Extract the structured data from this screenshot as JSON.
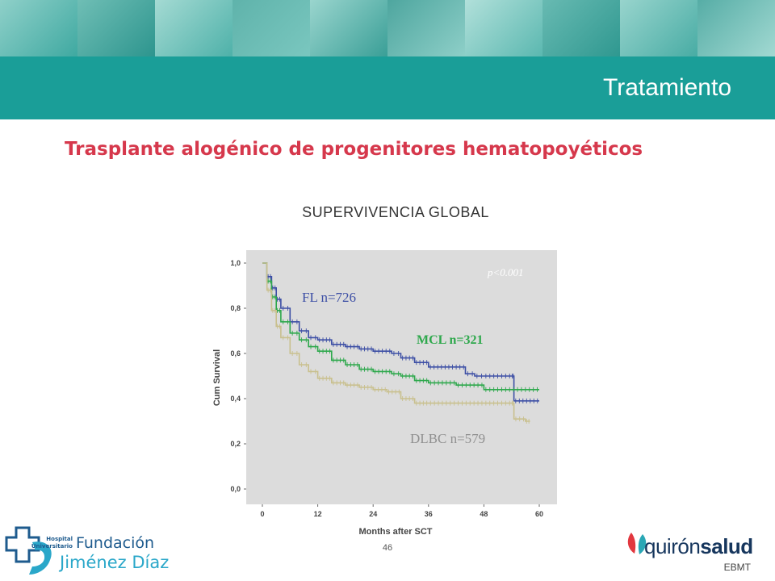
{
  "header": {
    "section_title": "Tratamiento",
    "band_color": "#1a9e98"
  },
  "slide": {
    "title": "Trasplante alogénico de progenitores hematopoyéticos",
    "title_color": "#d6384c",
    "chart_heading": "SUPERVIVENCIA GLOBAL",
    "page_number": "46",
    "source": "EBMT"
  },
  "logos": {
    "left": {
      "line1": "Hospital",
      "line2": "Universitario",
      "line3": "Fundación",
      "line4": "Jiménez Díaz"
    },
    "right": {
      "brand_part1": "quirón",
      "brand_part2": "salud"
    }
  },
  "chart_data": {
    "type": "line",
    "subtype": "kaplan-meier",
    "title": "",
    "xlabel": "Months after SCT",
    "ylabel": "Cum Survival",
    "xlim": [
      0,
      60
    ],
    "ylim": [
      0,
      1
    ],
    "x_ticks": [
      "0",
      "12",
      "24",
      "36",
      "48",
      "60"
    ],
    "y_ticks": [
      "0,0",
      "0,2",
      "0,4",
      "0,6",
      "0,8",
      "1,0"
    ],
    "plot_background": "#dcdcdc",
    "annotation": "p<0.001",
    "series": [
      {
        "name": "FL n=726",
        "color": "#3d4fa5",
        "label_color": "#3d4fa5",
        "x": [
          0,
          1,
          2,
          3,
          4,
          6,
          8,
          10,
          12,
          15,
          18,
          21,
          24,
          28,
          30,
          33,
          36,
          40,
          44,
          46,
          48,
          54,
          54.5,
          60
        ],
        "y": [
          1.0,
          0.94,
          0.89,
          0.84,
          0.8,
          0.74,
          0.7,
          0.67,
          0.66,
          0.64,
          0.63,
          0.62,
          0.61,
          0.6,
          0.58,
          0.56,
          0.54,
          0.54,
          0.51,
          0.5,
          0.5,
          0.5,
          0.39,
          0.39
        ]
      },
      {
        "name": "MCL n=321",
        "color": "#2ea84c",
        "label_color": "#2ea84c",
        "x": [
          0,
          1,
          2,
          3,
          4,
          6,
          8,
          10,
          12,
          15,
          18,
          21,
          24,
          28,
          30,
          33,
          36,
          42,
          48,
          54,
          60
        ],
        "y": [
          1.0,
          0.92,
          0.85,
          0.79,
          0.74,
          0.69,
          0.66,
          0.63,
          0.61,
          0.57,
          0.55,
          0.53,
          0.52,
          0.51,
          0.5,
          0.48,
          0.47,
          0.46,
          0.44,
          0.44,
          0.44
        ]
      },
      {
        "name": "DLBC n=579",
        "color": "#c9c08e",
        "label_color": "#909090",
        "x": [
          0,
          1,
          2,
          3,
          4,
          6,
          8,
          10,
          12,
          15,
          18,
          21,
          24,
          27,
          30,
          33,
          36,
          42,
          48,
          54,
          54.5,
          57,
          58
        ],
        "y": [
          1.0,
          0.88,
          0.79,
          0.72,
          0.67,
          0.6,
          0.55,
          0.52,
          0.49,
          0.47,
          0.46,
          0.45,
          0.44,
          0.43,
          0.4,
          0.38,
          0.38,
          0.38,
          0.38,
          0.38,
          0.31,
          0.3,
          0.3
        ]
      }
    ]
  }
}
